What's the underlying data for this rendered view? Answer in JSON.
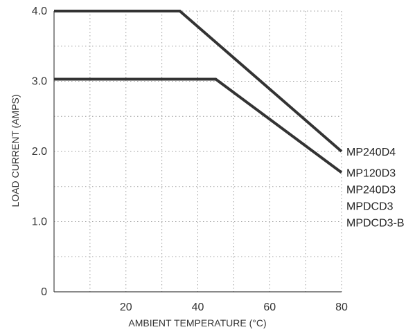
{
  "chart_data": {
    "type": "line",
    "xlabel": "AMBIENT TEMPERATURE (°C)",
    "ylabel": "LOAD CURRENT (AMPS)",
    "xlim": [
      0,
      80
    ],
    "ylim": [
      0,
      4
    ],
    "x_ticks": [
      {
        "value": 20,
        "label": "20"
      },
      {
        "value": 40,
        "label": "40"
      },
      {
        "value": 60,
        "label": "60"
      },
      {
        "value": 80,
        "label": "80"
      }
    ],
    "y_ticks": [
      {
        "value": 0,
        "label": "0"
      },
      {
        "value": 1,
        "label": "1.0"
      },
      {
        "value": 2,
        "label": "2.0"
      },
      {
        "value": 3,
        "label": "3.0"
      },
      {
        "value": 4,
        "label": "4.0"
      }
    ],
    "grid": true,
    "grid_style": "dotted",
    "line_color": "#333333",
    "series": [
      {
        "points": [
          {
            "x": 0,
            "y": 4.0
          },
          {
            "x": 35,
            "y": 4.0
          },
          {
            "x": 80,
            "y": 2.0
          }
        ],
        "labels": [
          "MP240D4"
        ]
      },
      {
        "points": [
          {
            "x": 0,
            "y": 3.03
          },
          {
            "x": 45,
            "y": 3.03
          },
          {
            "x": 80,
            "y": 1.7
          }
        ],
        "labels": [
          "MP120D3",
          "MP240D3",
          "MPDCD3",
          "MPDCD3-B"
        ]
      }
    ]
  }
}
